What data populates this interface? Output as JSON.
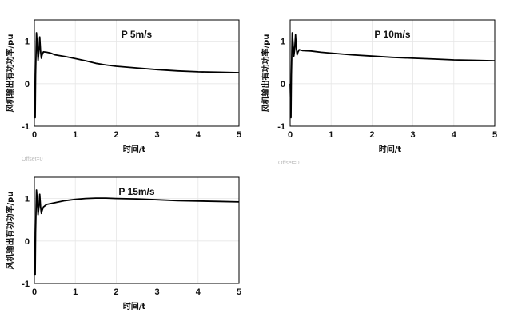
{
  "colors": {
    "line": "#000000",
    "grid": "#e6e6e6",
    "frame": "#000000",
    "background": "#ffffff"
  },
  "chart_data": [
    {
      "type": "line",
      "title": "P  5m/s",
      "xlabel": "时间/t",
      "ylabel": "风机输出有功功率/pu",
      "xlim": [
        0,
        5
      ],
      "ylim": [
        -1,
        1.5
      ],
      "xticks": [
        "0",
        "1",
        "2",
        "3",
        "4",
        "5"
      ],
      "yticks": [
        "-1",
        "0",
        "1"
      ],
      "grid": true,
      "offset_label": "Offset=0",
      "series": [
        {
          "x": [
            0.0,
            0.02,
            0.03,
            0.05,
            0.07,
            0.09,
            0.11,
            0.13,
            0.15,
            0.17,
            0.19,
            0.22,
            0.3,
            0.4,
            0.5,
            0.75,
            1.0,
            1.25,
            1.5,
            1.75,
            2.0,
            2.5,
            3.0,
            3.5,
            4.0,
            4.5,
            5.0
          ],
          "y": [
            0.0,
            -0.8,
            0.2,
            1.2,
            0.9,
            0.55,
            0.75,
            1.1,
            0.78,
            0.6,
            0.68,
            0.75,
            0.74,
            0.72,
            0.68,
            0.64,
            0.59,
            0.54,
            0.48,
            0.44,
            0.41,
            0.37,
            0.33,
            0.3,
            0.28,
            0.27,
            0.26
          ]
        }
      ]
    },
    {
      "type": "line",
      "title": "P  10m/s",
      "xlabel": "时间/t",
      "ylabel": "风机输出有功功率/pu",
      "xlim": [
        0,
        5
      ],
      "ylim": [
        -1,
        1.5
      ],
      "xticks": [
        "0",
        "1",
        "2",
        "3",
        "4",
        "5"
      ],
      "yticks": [
        "-1",
        "0",
        "1"
      ],
      "grid": true,
      "offset_label": "Offset=0",
      "series": [
        {
          "x": [
            0.0,
            0.02,
            0.03,
            0.05,
            0.07,
            0.09,
            0.11,
            0.13,
            0.15,
            0.17,
            0.19,
            0.22,
            0.3,
            0.5,
            0.75,
            1.0,
            1.5,
            2.0,
            2.5,
            3.0,
            3.5,
            4.0,
            4.5,
            5.0
          ],
          "y": [
            0.0,
            -0.8,
            0.2,
            1.2,
            0.95,
            0.65,
            0.8,
            1.15,
            0.85,
            0.68,
            0.74,
            0.8,
            0.78,
            0.77,
            0.74,
            0.72,
            0.68,
            0.65,
            0.62,
            0.6,
            0.58,
            0.56,
            0.55,
            0.54
          ]
        }
      ]
    },
    {
      "type": "line",
      "title": "P  15m/s",
      "xlabel": "时间/t",
      "ylabel": "风机输出有功功率/pu",
      "xlim": [
        0,
        5
      ],
      "ylim": [
        -1,
        1.5
      ],
      "xticks": [
        "0",
        "1",
        "2",
        "3",
        "4",
        "5"
      ],
      "yticks": [
        "-1",
        "0",
        "1"
      ],
      "grid": true,
      "series": [
        {
          "x": [
            0.0,
            0.02,
            0.03,
            0.05,
            0.07,
            0.09,
            0.11,
            0.13,
            0.15,
            0.17,
            0.19,
            0.22,
            0.3,
            0.5,
            0.75,
            1.0,
            1.25,
            1.5,
            1.75,
            2.0,
            2.5,
            3.0,
            3.5,
            4.0,
            4.5,
            5.0
          ],
          "y": [
            0.0,
            -0.8,
            0.2,
            1.2,
            0.95,
            0.62,
            0.78,
            1.1,
            0.82,
            0.65,
            0.72,
            0.8,
            0.86,
            0.9,
            0.95,
            0.98,
            1.0,
            1.01,
            1.01,
            1.0,
            0.99,
            0.97,
            0.95,
            0.94,
            0.93,
            0.92
          ]
        }
      ]
    }
  ]
}
